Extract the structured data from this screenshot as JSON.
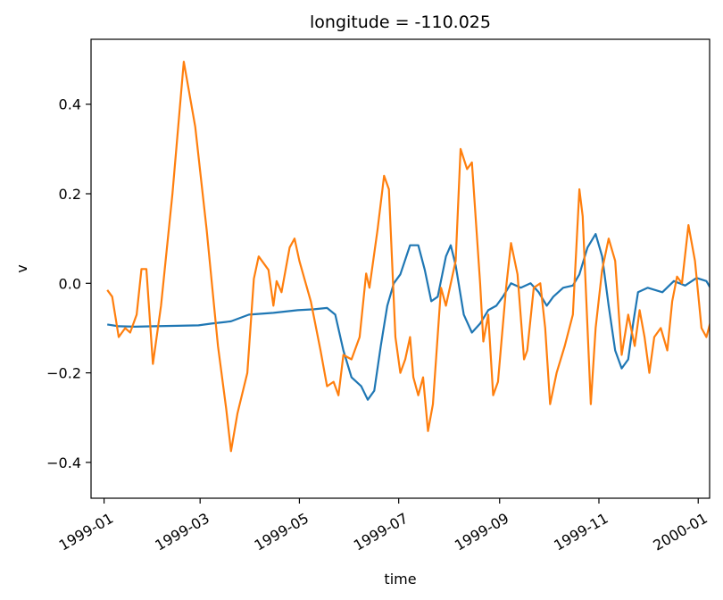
{
  "chart_data": {
    "type": "line",
    "title": "longitude = -110.025",
    "xlabel": "time",
    "ylabel": "v",
    "x_ticks": [
      "1999-01",
      "1999-03",
      "1999-05",
      "1999-07",
      "1999-09",
      "1999-11",
      "2000-01"
    ],
    "y_ticks": [
      "−0.4",
      "−0.2",
      "0.0",
      "0.2",
      "0.4"
    ],
    "y_tick_values": [
      -0.4,
      -0.2,
      0.0,
      0.2,
      0.4
    ],
    "xlim": [
      "1998-12-24",
      "2000-01-08"
    ],
    "ylim": [
      -0.48,
      0.545
    ],
    "grid": false,
    "series": [
      {
        "color": "#1f77b4",
        "points": [
          [
            "1999-01-03",
            -0.092
          ],
          [
            "1999-01-10",
            -0.096
          ],
          [
            "1999-01-20",
            -0.097
          ],
          [
            "1999-02-01",
            -0.096
          ],
          [
            "1999-02-15",
            -0.095
          ],
          [
            "1999-02-28",
            -0.094
          ],
          [
            "1999-03-08",
            -0.09
          ],
          [
            "1999-03-20",
            -0.085
          ],
          [
            "1999-03-31",
            -0.07
          ],
          [
            "1999-04-15",
            -0.066
          ],
          [
            "1999-04-30",
            -0.06
          ],
          [
            "1999-05-10",
            -0.058
          ],
          [
            "1999-05-18",
            -0.055
          ],
          [
            "1999-05-23",
            -0.07
          ],
          [
            "1999-05-28",
            -0.15
          ],
          [
            "1999-06-02",
            -0.21
          ],
          [
            "1999-06-08",
            -0.23
          ],
          [
            "1999-06-12",
            -0.26
          ],
          [
            "1999-06-16",
            -0.24
          ],
          [
            "1999-06-20",
            -0.14
          ],
          [
            "1999-06-24",
            -0.05
          ],
          [
            "1999-06-28",
            0.0
          ],
          [
            "1999-07-02",
            0.02
          ],
          [
            "1999-07-08",
            0.085
          ],
          [
            "1999-07-13",
            0.085
          ],
          [
            "1999-07-17",
            0.03
          ],
          [
            "1999-07-21",
            -0.04
          ],
          [
            "1999-07-25",
            -0.03
          ],
          [
            "1999-07-30",
            0.06
          ],
          [
            "1999-08-02",
            0.085
          ],
          [
            "1999-08-05",
            0.04
          ],
          [
            "1999-08-10",
            -0.07
          ],
          [
            "1999-08-15",
            -0.11
          ],
          [
            "1999-08-20",
            -0.09
          ],
          [
            "1999-08-25",
            -0.06
          ],
          [
            "1999-08-30",
            -0.05
          ],
          [
            "1999-09-03",
            -0.03
          ],
          [
            "1999-09-08",
            0.0
          ],
          [
            "1999-09-14",
            -0.01
          ],
          [
            "1999-09-20",
            0.0
          ],
          [
            "1999-09-25",
            -0.02
          ],
          [
            "1999-09-30",
            -0.05
          ],
          [
            "1999-10-04",
            -0.03
          ],
          [
            "1999-10-10",
            -0.01
          ],
          [
            "1999-10-16",
            -0.005
          ],
          [
            "1999-10-20",
            0.02
          ],
          [
            "1999-10-25",
            0.08
          ],
          [
            "1999-10-30",
            0.11
          ],
          [
            "1999-11-03",
            0.06
          ],
          [
            "1999-11-07",
            -0.05
          ],
          [
            "1999-11-11",
            -0.15
          ],
          [
            "1999-11-15",
            -0.19
          ],
          [
            "1999-11-19",
            -0.17
          ],
          [
            "1999-11-22",
            -0.09
          ],
          [
            "1999-11-25",
            -0.02
          ],
          [
            "1999-12-01",
            -0.01
          ],
          [
            "1999-12-10",
            -0.02
          ],
          [
            "1999-12-17",
            0.005
          ],
          [
            "1999-12-24",
            -0.005
          ],
          [
            "1999-12-31",
            0.012
          ],
          [
            "2000-01-06",
            0.005
          ],
          [
            "2000-01-10",
            -0.02
          ],
          [
            "2000-01-14",
            -0.03
          ]
        ]
      },
      {
        "color": "#ff7f0e",
        "points": [
          [
            "1999-01-03",
            -0.015
          ],
          [
            "1999-01-06",
            -0.03
          ],
          [
            "1999-01-10",
            -0.12
          ],
          [
            "1999-01-14",
            -0.1
          ],
          [
            "1999-01-17",
            -0.11
          ],
          [
            "1999-01-21",
            -0.07
          ],
          [
            "1999-01-24",
            0.032
          ],
          [
            "1999-01-27",
            0.032
          ],
          [
            "1999-01-31",
            -0.18
          ],
          [
            "1999-02-05",
            -0.05
          ],
          [
            "1999-02-12",
            0.2
          ],
          [
            "1999-02-19",
            0.495
          ],
          [
            "1999-02-26",
            0.35
          ],
          [
            "1999-03-05",
            0.12
          ],
          [
            "1999-03-12",
            -0.14
          ],
          [
            "1999-03-17",
            -0.28
          ],
          [
            "1999-03-20",
            -0.375
          ],
          [
            "1999-03-24",
            -0.29
          ],
          [
            "1999-03-30",
            -0.2
          ],
          [
            "1999-04-03",
            0.01
          ],
          [
            "1999-04-06",
            0.06
          ],
          [
            "1999-04-12",
            0.03
          ],
          [
            "1999-04-15",
            -0.05
          ],
          [
            "1999-04-17",
            0.005
          ],
          [
            "1999-04-20",
            -0.02
          ],
          [
            "1999-04-25",
            0.08
          ],
          [
            "1999-04-28",
            0.1
          ],
          [
            "1999-05-01",
            0.05
          ],
          [
            "1999-05-08",
            -0.04
          ],
          [
            "1999-05-14",
            -0.15
          ],
          [
            "1999-05-18",
            -0.23
          ],
          [
            "1999-05-22",
            -0.22
          ],
          [
            "1999-05-25",
            -0.25
          ],
          [
            "1999-05-28",
            -0.16
          ],
          [
            "1999-06-02",
            -0.17
          ],
          [
            "1999-06-07",
            -0.12
          ],
          [
            "1999-06-11",
            0.022
          ],
          [
            "1999-06-13",
            -0.01
          ],
          [
            "1999-06-18",
            0.12
          ],
          [
            "1999-06-22",
            0.24
          ],
          [
            "1999-06-25",
            0.21
          ],
          [
            "1999-06-29",
            -0.12
          ],
          [
            "1999-07-02",
            -0.2
          ],
          [
            "1999-07-05",
            -0.17
          ],
          [
            "1999-07-08",
            -0.12
          ],
          [
            "1999-07-10",
            -0.21
          ],
          [
            "1999-07-13",
            -0.25
          ],
          [
            "1999-07-16",
            -0.21
          ],
          [
            "1999-07-19",
            -0.33
          ],
          [
            "1999-07-22",
            -0.27
          ],
          [
            "1999-07-27",
            -0.01
          ],
          [
            "1999-07-30",
            -0.05
          ],
          [
            "1999-08-05",
            0.05
          ],
          [
            "1999-08-08",
            0.3
          ],
          [
            "1999-08-12",
            0.255
          ],
          [
            "1999-08-15",
            0.27
          ],
          [
            "1999-08-20",
            0.0
          ],
          [
            "1999-08-22",
            -0.13
          ],
          [
            "1999-08-25",
            -0.07
          ],
          [
            "1999-08-28",
            -0.25
          ],
          [
            "1999-08-31",
            -0.22
          ],
          [
            "1999-09-05",
            -0.01
          ],
          [
            "1999-09-08",
            0.09
          ],
          [
            "1999-09-12",
            0.02
          ],
          [
            "1999-09-16",
            -0.17
          ],
          [
            "1999-09-18",
            -0.15
          ],
          [
            "1999-09-22",
            -0.01
          ],
          [
            "1999-09-26",
            0.0
          ],
          [
            "1999-09-29",
            -0.1
          ],
          [
            "1999-10-02",
            -0.27
          ],
          [
            "1999-10-06",
            -0.2
          ],
          [
            "1999-10-11",
            -0.14
          ],
          [
            "1999-10-16",
            -0.07
          ],
          [
            "1999-10-20",
            0.21
          ],
          [
            "1999-10-22",
            0.15
          ],
          [
            "1999-10-27",
            -0.27
          ],
          [
            "1999-10-30",
            -0.1
          ],
          [
            "1999-11-03",
            0.03
          ],
          [
            "1999-11-07",
            0.1
          ],
          [
            "1999-11-11",
            0.05
          ],
          [
            "1999-11-15",
            -0.16
          ],
          [
            "1999-11-19",
            -0.07
          ],
          [
            "1999-11-23",
            -0.14
          ],
          [
            "1999-11-26",
            -0.06
          ],
          [
            "1999-11-29",
            -0.12
          ],
          [
            "1999-12-02",
            -0.2
          ],
          [
            "1999-12-05",
            -0.12
          ],
          [
            "1999-12-09",
            -0.1
          ],
          [
            "1999-12-13",
            -0.15
          ],
          [
            "1999-12-16",
            -0.04
          ],
          [
            "1999-12-19",
            0.015
          ],
          [
            "1999-12-22",
            0.0
          ],
          [
            "1999-12-26",
            0.13
          ],
          [
            "1999-12-30",
            0.05
          ],
          [
            "2000-01-03",
            -0.1
          ],
          [
            "2000-01-06",
            -0.12
          ],
          [
            "2000-01-09",
            -0.08
          ],
          [
            "2000-01-12",
            -0.11
          ]
        ]
      }
    ]
  }
}
